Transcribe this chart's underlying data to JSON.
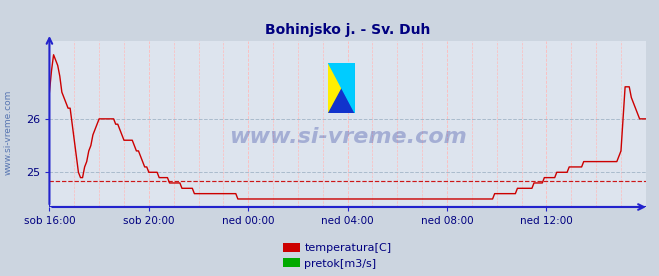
{
  "title": "Bohinjsko j. - Sv. Duh",
  "title_color": "#000080",
  "title_fontsize": 10,
  "bg_color": "#ccd5e0",
  "plot_bg_color": "#dde4ee",
  "grid_v_color": "#ffbbbb",
  "grid_h_color": "#aabbcc",
  "axis_color": "#2222cc",
  "tick_label_color": "#000080",
  "watermark_text": "www.si-vreme.com",
  "watermark_color": "#223399",
  "watermark_alpha": 0.3,
  "watermark_fontsize": 16,
  "side_label": "www.si-vreme.com",
  "side_label_color": "#4466aa",
  "legend_items": [
    {
      "label": "temperatura[C]",
      "color": "#cc0000"
    },
    {
      "label": "pretok[m3/s]",
      "color": "#00aa00"
    }
  ],
  "x_tick_labels": [
    "sob 16:00",
    "sob 20:00",
    "ned 00:00",
    "ned 04:00",
    "ned 08:00",
    "ned 12:00"
  ],
  "tick_positions": [
    0,
    48,
    96,
    144,
    192,
    240
  ],
  "ylim": [
    24.35,
    27.45
  ],
  "y_ticks": [
    25,
    26
  ],
  "avg_line_y": 24.83,
  "avg_line_color": "#cc0000",
  "n_points": 289,
  "line_color": "#cc0000",
  "line_width": 1.0,
  "logo_yellow": "#ffee00",
  "logo_blue": "#1133cc",
  "logo_cyan": "#00ccff"
}
